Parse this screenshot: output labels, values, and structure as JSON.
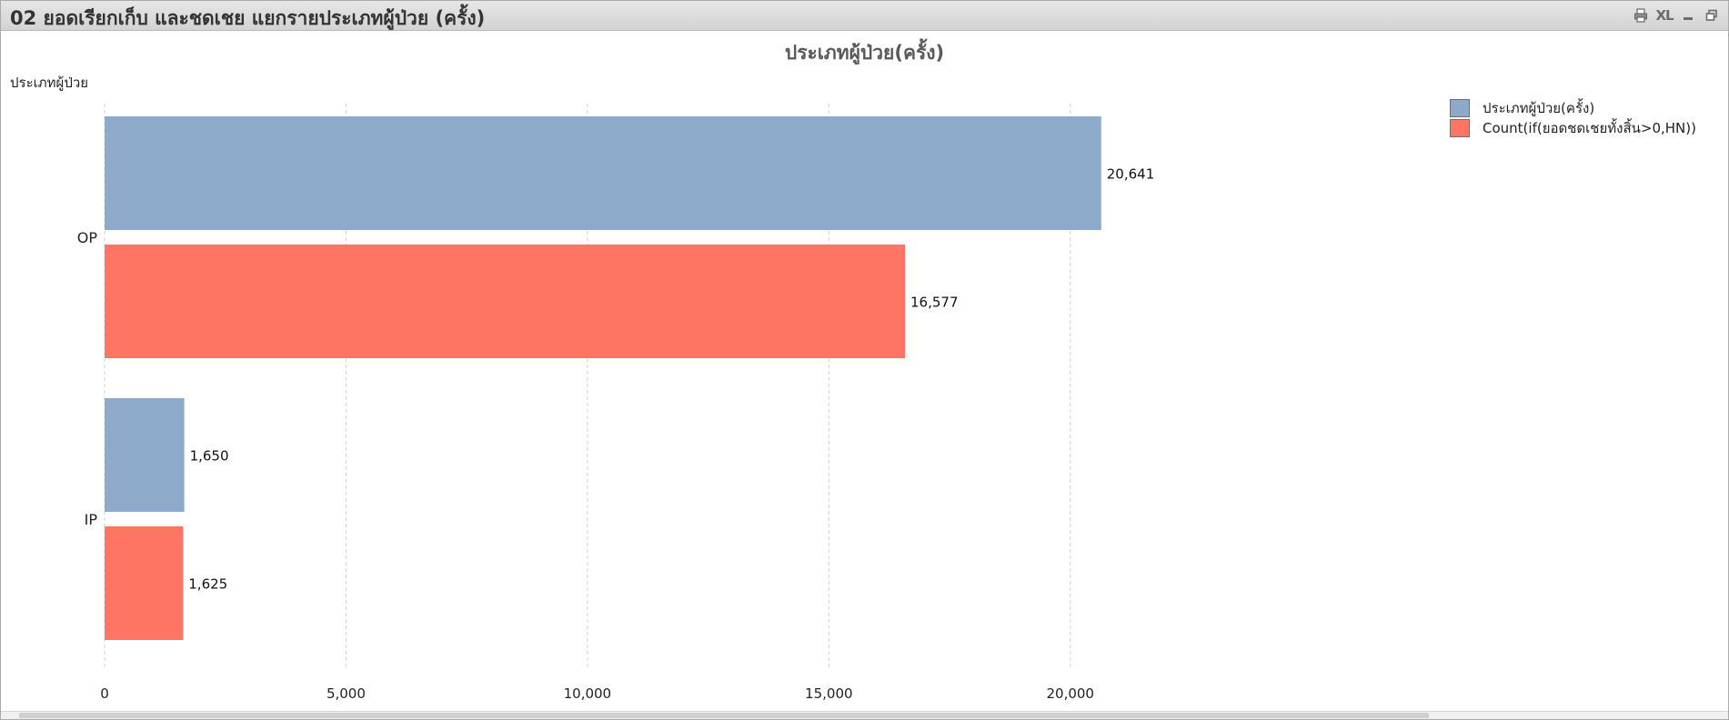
{
  "window": {
    "title": "02 ยอดเรียกเก็บ และชดเชย แยกรายประเภทผู้ป่วย (ครั้ง)",
    "controls": [
      {
        "icon": "print-icon"
      },
      {
        "label": "XL",
        "icon": "excel-export-icon"
      },
      {
        "icon": "minimize-icon"
      },
      {
        "icon": "restore-icon"
      }
    ]
  },
  "chart_data": {
    "type": "bar",
    "orientation": "horizontal",
    "title": "ประเภทผู้ป่วย(ครั้ง)",
    "dimension_label": "ประเภทผู้ป่วย",
    "categories": [
      "OP",
      "IP"
    ],
    "series": [
      {
        "name": "ประเภทผู้ป่วย(ครั้ง)",
        "color": "#8eaaca",
        "values": [
          20641,
          1650
        ],
        "value_labels": [
          "20,641",
          "1,650"
        ]
      },
      {
        "name": "Count(if(ยอดชดเชยทั้งสิ้น>0,HN))",
        "color": "#ff7563",
        "values": [
          16577,
          1625
        ],
        "value_labels": [
          "16,577",
          "1,625"
        ]
      }
    ],
    "xlim": [
      0,
      23000
    ],
    "xticks": [
      0,
      5000,
      10000,
      15000,
      20000
    ],
    "xtick_labels": [
      "0",
      "5,000",
      "10,000",
      "15,000",
      "20,000"
    ],
    "grid": true,
    "legend_position": "top-right"
  }
}
